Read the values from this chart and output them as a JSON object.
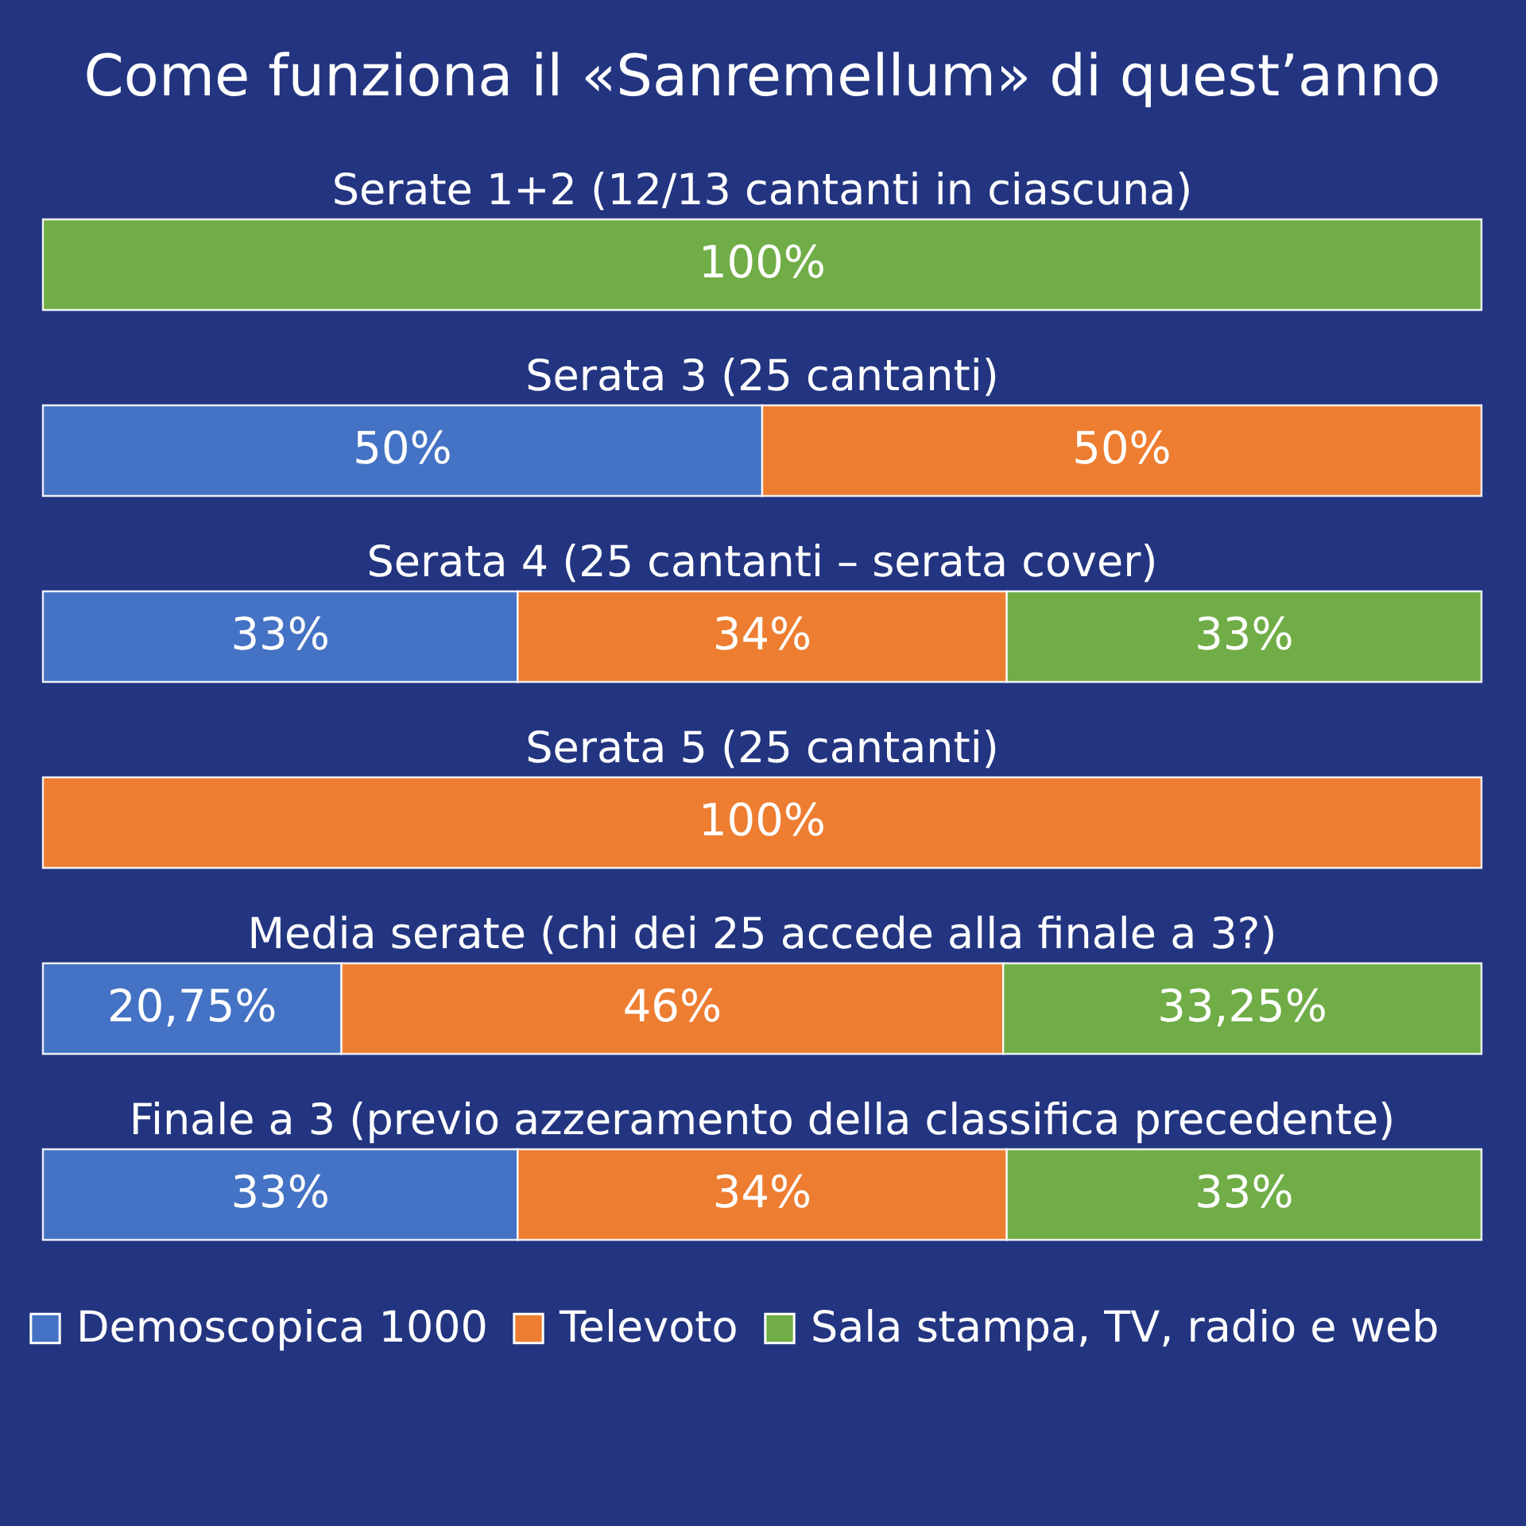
{
  "chart_data": {
    "type": "bar",
    "orientation": "horizontal",
    "stacked": true,
    "title": "Come funziona il «Sanremellum» di quest’anno",
    "categories": [
      "Serate 1+2 (12/13 cantanti in ciascuna)",
      "Serata 3 (25 cantanti)",
      "Serata 4 (25 cantanti – serata cover)",
      "Serata 5 (25 cantanti)",
      "Media serate (chi dei 25 accede alla finale a 3?)",
      "Finale a 3 (previo azzeramento della classifica precedente)"
    ],
    "xlim": [
      0,
      100
    ],
    "tick_labels": "y",
    "legend": "bottom",
    "series": [
      {
        "name": "Demoscopica 1000",
        "color": "#4472c4",
        "values": [
          null,
          50,
          33,
          null,
          20.75,
          33
        ],
        "value_labels": [
          null,
          "50%",
          "33%",
          null,
          "20,75%",
          "33%"
        ]
      },
      {
        "name": "Televoto",
        "color": "#ed7d31",
        "values": [
          null,
          50,
          34,
          100,
          46,
          34
        ],
        "value_labels": [
          null,
          "50%",
          "34%",
          "100%",
          "46%",
          "34%"
        ]
      },
      {
        "name": "Sala stampa, TV, radio e web",
        "color": "#70ad47",
        "values": [
          100,
          null,
          33,
          null,
          33.25,
          33
        ],
        "value_labels": [
          "100%",
          null,
          "33%",
          null,
          "33,25%",
          "33%"
        ]
      }
    ]
  }
}
